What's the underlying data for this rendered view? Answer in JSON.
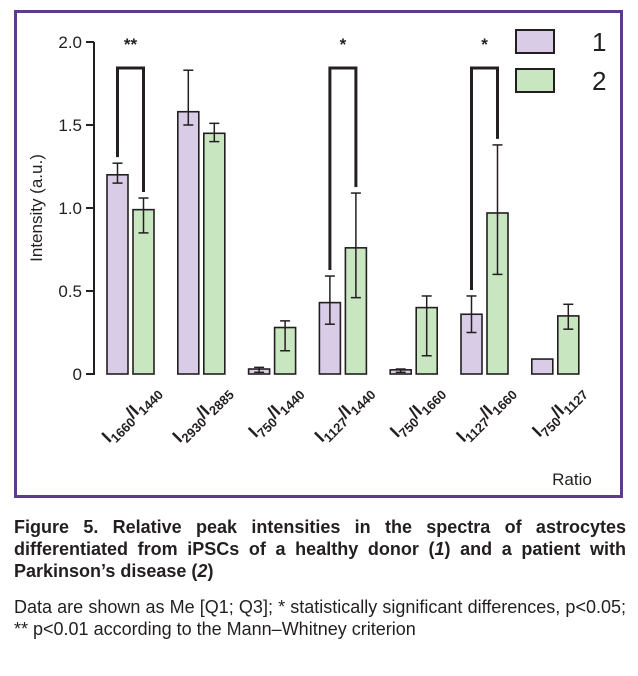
{
  "chart_data": {
    "type": "bar",
    "ylabel": "Intensity (a.u.)",
    "xlabel": "Ratio",
    "ylim": [
      0,
      2.0
    ],
    "yticks": [
      "0",
      "0.5",
      "1.0",
      "1.5",
      "2.0"
    ],
    "categories": [
      {
        "main1": "I",
        "sub1": "1660",
        "main2": "/I",
        "sub2": "1440"
      },
      {
        "main1": "I",
        "sub1": "2930",
        "main2": "/I",
        "sub2": "2885"
      },
      {
        "main1": "I",
        "sub1": "750",
        "main2": "/I",
        "sub2": "1440"
      },
      {
        "main1": "I",
        "sub1": "1127",
        "main2": "/I",
        "sub2": "1440"
      },
      {
        "main1": "I",
        "sub1": "750",
        "main2": "/I",
        "sub2": "1660"
      },
      {
        "main1": "I",
        "sub1": "1127",
        "main2": "/I",
        "sub2": "1660"
      },
      {
        "main1": "I",
        "sub1": "750",
        "main2": "/I",
        "sub2": "1127"
      }
    ],
    "series": [
      {
        "name": "1",
        "color": "#d9cce6",
        "values": [
          1.2,
          1.58,
          0.03,
          0.43,
          0.025,
          0.36,
          0.09
        ],
        "err_low": [
          1.15,
          1.5,
          0.01,
          0.3,
          0.01,
          0.25,
          0.09
        ],
        "err_high": [
          1.27,
          1.83,
          0.04,
          0.59,
          0.03,
          0.47,
          0.09
        ]
      },
      {
        "name": "2",
        "color": "#c8e6c0",
        "values": [
          0.99,
          1.45,
          0.28,
          0.76,
          0.4,
          0.97,
          0.35
        ],
        "err_low": [
          0.85,
          1.4,
          0.14,
          0.46,
          0.11,
          0.6,
          0.27
        ],
        "err_high": [
          1.06,
          1.51,
          0.32,
          1.09,
          0.47,
          1.38,
          0.42
        ]
      }
    ],
    "significance": [
      {
        "category_index": 0,
        "label": "**"
      },
      {
        "category_index": 3,
        "label": "*"
      },
      {
        "category_index": 5,
        "label": "*"
      }
    ],
    "legend_position": "top-right",
    "grid": false
  },
  "caption": {
    "figure_label": "Figure 5.",
    "title_part1": " Relative peak intensities in the spectra of astrocytes differentiated from iPSCs of a healthy donor (",
    "group1": "1",
    "title_part2": ") and a patient with Parkinson’s disease (",
    "group2": "2",
    "title_part3": ")",
    "note": "Data are shown as Me [Q1; Q3]; * statistically significant differences, p<0.05; ** p<0.01 according to the Mann–Whitney criterion"
  }
}
